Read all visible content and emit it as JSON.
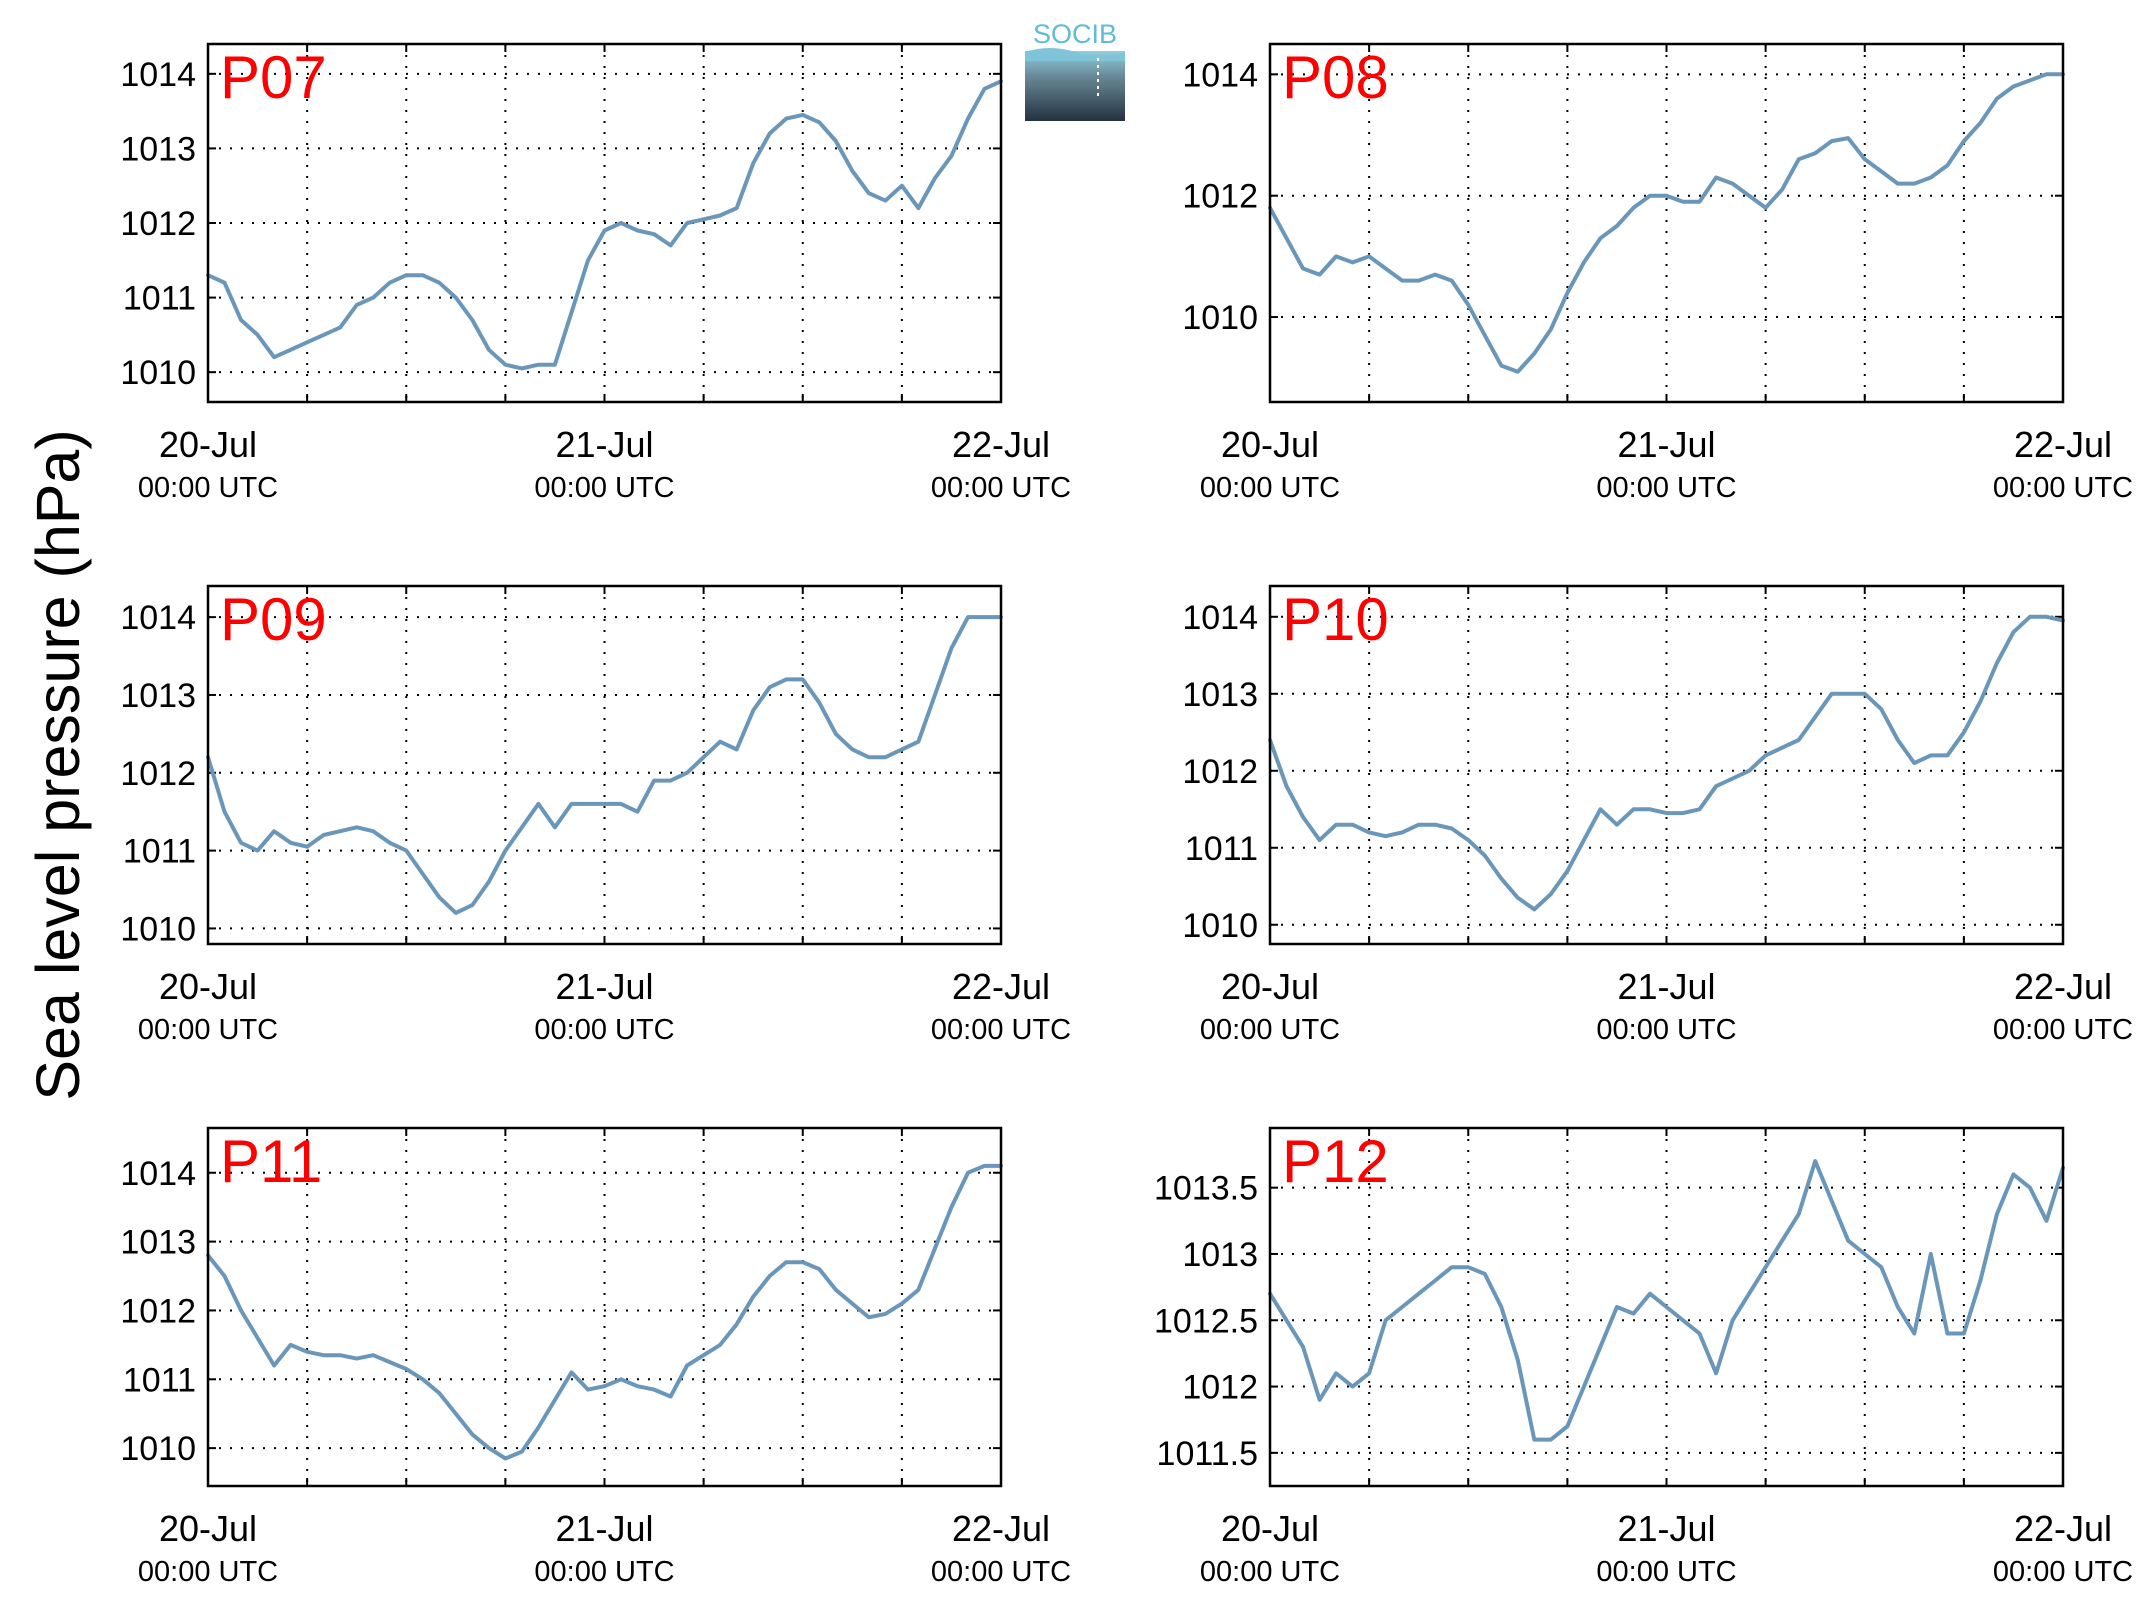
{
  "ylabel": "Sea level pressure (hPa)",
  "logo": {
    "text": "SOCIB"
  },
  "line_color": "#6a96ba",
  "label_color": "#ff0000",
  "x_ticks": [
    {
      "date": "20-Jul",
      "time": "00:00 UTC"
    },
    {
      "date": "21-Jul",
      "time": "00:00 UTC"
    },
    {
      "date": "22-Jul",
      "time": "00:00 UTC"
    }
  ],
  "chart_data": [
    {
      "type": "line",
      "label": "P07",
      "xlim": [
        0,
        48
      ],
      "ylim": [
        1009.6,
        1014.4
      ],
      "yticks": [
        1010,
        1011,
        1012,
        1013,
        1014
      ],
      "x": [
        0,
        1,
        2,
        3,
        4,
        5,
        6,
        7,
        8,
        9,
        10,
        11,
        12,
        13,
        14,
        15,
        16,
        17,
        18,
        19,
        20,
        21,
        22,
        23,
        24,
        25,
        26,
        27,
        28,
        29,
        30,
        31,
        32,
        33,
        34,
        35,
        36,
        37,
        38,
        39,
        40,
        41,
        42,
        43,
        44,
        45,
        46,
        47,
        48
      ],
      "values": [
        1011.3,
        1011.2,
        1010.7,
        1010.5,
        1010.2,
        1010.3,
        1010.4,
        1010.5,
        1010.6,
        1010.9,
        1011.0,
        1011.2,
        1011.3,
        1011.3,
        1011.2,
        1011.0,
        1010.7,
        1010.3,
        1010.1,
        1010.05,
        1010.1,
        1010.1,
        1010.8,
        1011.5,
        1011.9,
        1012.0,
        1011.9,
        1011.85,
        1011.7,
        1012.0,
        1012.05,
        1012.1,
        1012.2,
        1012.8,
        1013.2,
        1013.4,
        1013.45,
        1013.35,
        1013.1,
        1012.7,
        1012.4,
        1012.3,
        1012.5,
        1012.2,
        1012.6,
        1012.9,
        1013.4,
        1013.8,
        1013.9
      ]
    },
    {
      "type": "line",
      "label": "P08",
      "xlim": [
        0,
        48
      ],
      "ylim": [
        1008.6,
        1014.5
      ],
      "yticks": [
        1010,
        1012,
        1014
      ],
      "x": [
        0,
        1,
        2,
        3,
        4,
        5,
        6,
        7,
        8,
        9,
        10,
        11,
        12,
        13,
        14,
        15,
        16,
        17,
        18,
        19,
        20,
        21,
        22,
        23,
        24,
        25,
        26,
        27,
        28,
        29,
        30,
        31,
        32,
        33,
        34,
        35,
        36,
        37,
        38,
        39,
        40,
        41,
        42,
        43,
        44,
        45,
        46,
        47,
        48
      ],
      "values": [
        1011.8,
        1011.3,
        1010.8,
        1010.7,
        1011.0,
        1010.9,
        1011.0,
        1010.8,
        1010.6,
        1010.6,
        1010.7,
        1010.6,
        1010.2,
        1009.7,
        1009.2,
        1009.1,
        1009.4,
        1009.8,
        1010.4,
        1010.9,
        1011.3,
        1011.5,
        1011.8,
        1012.0,
        1012.0,
        1011.9,
        1011.9,
        1012.3,
        1012.2,
        1012.0,
        1011.8,
        1012.1,
        1012.6,
        1012.7,
        1012.9,
        1012.95,
        1012.6,
        1012.4,
        1012.2,
        1012.2,
        1012.3,
        1012.5,
        1012.9,
        1013.2,
        1013.6,
        1013.8,
        1013.9,
        1014.0,
        1014.0
      ]
    },
    {
      "type": "line",
      "label": "P09",
      "xlim": [
        0,
        48
      ],
      "ylim": [
        1009.8,
        1014.4
      ],
      "yticks": [
        1010,
        1011,
        1012,
        1013,
        1014
      ],
      "x": [
        0,
        1,
        2,
        3,
        4,
        5,
        6,
        7,
        8,
        9,
        10,
        11,
        12,
        13,
        14,
        15,
        16,
        17,
        18,
        19,
        20,
        21,
        22,
        23,
        24,
        25,
        26,
        27,
        28,
        29,
        30,
        31,
        32,
        33,
        34,
        35,
        36,
        37,
        38,
        39,
        40,
        41,
        42,
        43,
        44,
        45,
        46,
        47,
        48
      ],
      "values": [
        1012.2,
        1011.5,
        1011.1,
        1011.0,
        1011.25,
        1011.1,
        1011.05,
        1011.2,
        1011.25,
        1011.3,
        1011.25,
        1011.1,
        1011.0,
        1010.7,
        1010.4,
        1010.2,
        1010.3,
        1010.6,
        1011.0,
        1011.3,
        1011.6,
        1011.3,
        1011.6,
        1011.6,
        1011.6,
        1011.6,
        1011.5,
        1011.9,
        1011.9,
        1012.0,
        1012.2,
        1012.4,
        1012.3,
        1012.8,
        1013.1,
        1013.2,
        1013.2,
        1012.9,
        1012.5,
        1012.3,
        1012.2,
        1012.2,
        1012.3,
        1012.4,
        1013.0,
        1013.6,
        1014.0,
        1014.0,
        1014.0
      ]
    },
    {
      "type": "line",
      "label": "P10",
      "xlim": [
        0,
        48
      ],
      "ylim": [
        1009.75,
        1014.4
      ],
      "yticks": [
        1010,
        1011,
        1012,
        1013,
        1014
      ],
      "x": [
        0,
        1,
        2,
        3,
        4,
        5,
        6,
        7,
        8,
        9,
        10,
        11,
        12,
        13,
        14,
        15,
        16,
        17,
        18,
        19,
        20,
        21,
        22,
        23,
        24,
        25,
        26,
        27,
        28,
        29,
        30,
        31,
        32,
        33,
        34,
        35,
        36,
        37,
        38,
        39,
        40,
        41,
        42,
        43,
        44,
        45,
        46,
        47,
        48
      ],
      "values": [
        1012.4,
        1011.8,
        1011.4,
        1011.1,
        1011.3,
        1011.3,
        1011.2,
        1011.15,
        1011.2,
        1011.3,
        1011.3,
        1011.25,
        1011.1,
        1010.9,
        1010.6,
        1010.35,
        1010.2,
        1010.4,
        1010.7,
        1011.1,
        1011.5,
        1011.3,
        1011.5,
        1011.5,
        1011.45,
        1011.45,
        1011.5,
        1011.8,
        1011.9,
        1012.0,
        1012.2,
        1012.3,
        1012.4,
        1012.7,
        1013.0,
        1013.0,
        1013.0,
        1012.8,
        1012.4,
        1012.1,
        1012.2,
        1012.2,
        1012.5,
        1012.9,
        1013.4,
        1013.8,
        1014.0,
        1014.0,
        1013.95
      ]
    },
    {
      "type": "line",
      "label": "P11",
      "xlim": [
        0,
        48
      ],
      "ylim": [
        1009.45,
        1014.65
      ],
      "yticks": [
        1010,
        1011,
        1012,
        1013,
        1014
      ],
      "x": [
        0,
        1,
        2,
        3,
        4,
        5,
        6,
        7,
        8,
        9,
        10,
        11,
        12,
        13,
        14,
        15,
        16,
        17,
        18,
        19,
        20,
        21,
        22,
        23,
        24,
        25,
        26,
        27,
        28,
        29,
        30,
        31,
        32,
        33,
        34,
        35,
        36,
        37,
        38,
        39,
        40,
        41,
        42,
        43,
        44,
        45,
        46,
        47,
        48
      ],
      "values": [
        1012.8,
        1012.5,
        1012.0,
        1011.6,
        1011.2,
        1011.5,
        1011.4,
        1011.35,
        1011.35,
        1011.3,
        1011.35,
        1011.25,
        1011.15,
        1011.0,
        1010.8,
        1010.5,
        1010.2,
        1010.0,
        1009.85,
        1009.95,
        1010.3,
        1010.7,
        1011.1,
        1010.85,
        1010.9,
        1011.0,
        1010.9,
        1010.85,
        1010.75,
        1011.2,
        1011.35,
        1011.5,
        1011.8,
        1012.2,
        1012.5,
        1012.7,
        1012.7,
        1012.6,
        1012.3,
        1012.1,
        1011.9,
        1011.95,
        1012.1,
        1012.3,
        1012.9,
        1013.5,
        1014.0,
        1014.1,
        1014.1
      ]
    },
    {
      "type": "line",
      "label": "P12",
      "xlim": [
        0,
        48
      ],
      "ylim": [
        1011.25,
        1013.95
      ],
      "yticks": [
        1011.5,
        1012,
        1012.5,
        1013,
        1013.5
      ],
      "x": [
        0,
        1,
        2,
        3,
        4,
        5,
        6,
        7,
        8,
        9,
        10,
        11,
        12,
        13,
        14,
        15,
        16,
        17,
        18,
        19,
        20,
        21,
        22,
        23,
        24,
        25,
        26,
        27,
        28,
        29,
        30,
        31,
        32,
        33,
        34,
        35,
        36,
        37,
        38,
        39,
        40,
        41,
        42,
        43,
        44,
        45,
        46,
        47,
        48
      ],
      "values": [
        1012.7,
        1012.5,
        1012.3,
        1011.9,
        1012.1,
        1012.0,
        1012.1,
        1012.5,
        1012.6,
        1012.7,
        1012.8,
        1012.9,
        1012.9,
        1012.85,
        1012.6,
        1012.2,
        1011.6,
        1011.6,
        1011.7,
        1012.0,
        1012.3,
        1012.6,
        1012.55,
        1012.7,
        1012.6,
        1012.5,
        1012.4,
        1012.1,
        1012.5,
        1012.7,
        1012.9,
        1013.1,
        1013.3,
        1013.7,
        1013.4,
        1013.1,
        1013.0,
        1012.9,
        1012.6,
        1012.4,
        1013.0,
        1012.4,
        1012.4,
        1012.8,
        1013.3,
        1013.6,
        1013.5,
        1013.25,
        1013.65
      ]
    }
  ]
}
